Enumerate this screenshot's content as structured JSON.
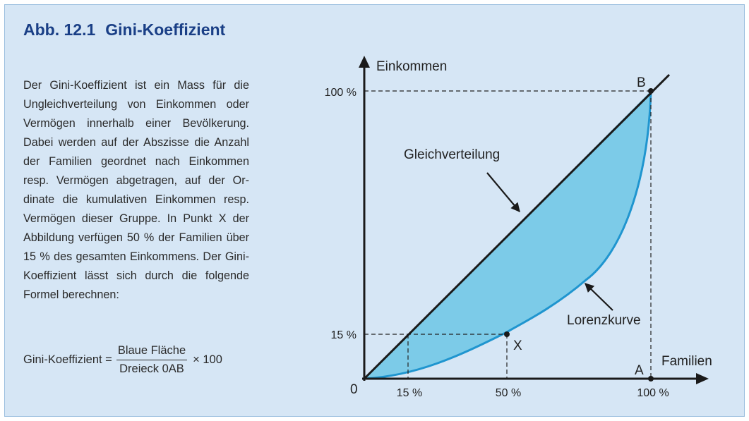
{
  "figure": {
    "number": "Abb. 12.1",
    "title": "Gini-Koeffizient"
  },
  "description": "Der Gini-Koeffizient ist ein Mass für die Ungleichverteilung von Einkommen oder Vermögen innerhalb einer Bevölkerung. Dabei werden auf der Abszisse die Anzahl der Familien geordnet nach Einkommen resp. Vermögen abgetragen, auf der Or­dinate die kumulativen Einkommen resp. Vermögen dieser Gruppe. In Punkt X der Abbildung verfügen 50 % der Familien über 15 % des gesamten Einkommens. Der Gini-Koeffizient lässt sich durch die folgende Formel berechnen:",
  "formula": {
    "lhs": "Gini-Koeffizient =",
    "numerator": "Blaue Fläche",
    "denominator": "Dreieck 0AB",
    "multiplier": "× 100"
  },
  "diagram": {
    "y_axis_label": "Einkommen",
    "x_axis_label": "Familien",
    "origin_label": "0",
    "y_ticks": [
      "100 %",
      "15 %"
    ],
    "x_ticks": [
      "15 %",
      "50 %",
      "100 %"
    ],
    "point_labels": {
      "A": "A",
      "B": "B",
      "X": "X"
    },
    "equality_label": "Gleichverteilung",
    "lorenz_label": "Lorenzkurve",
    "colors": {
      "fill": "#7ccbe8",
      "lorenz_line": "#1f95cf",
      "equality_line": "#1a1a1a",
      "title": "#1a3f86",
      "panel_bg": "#d6e6f5"
    }
  }
}
